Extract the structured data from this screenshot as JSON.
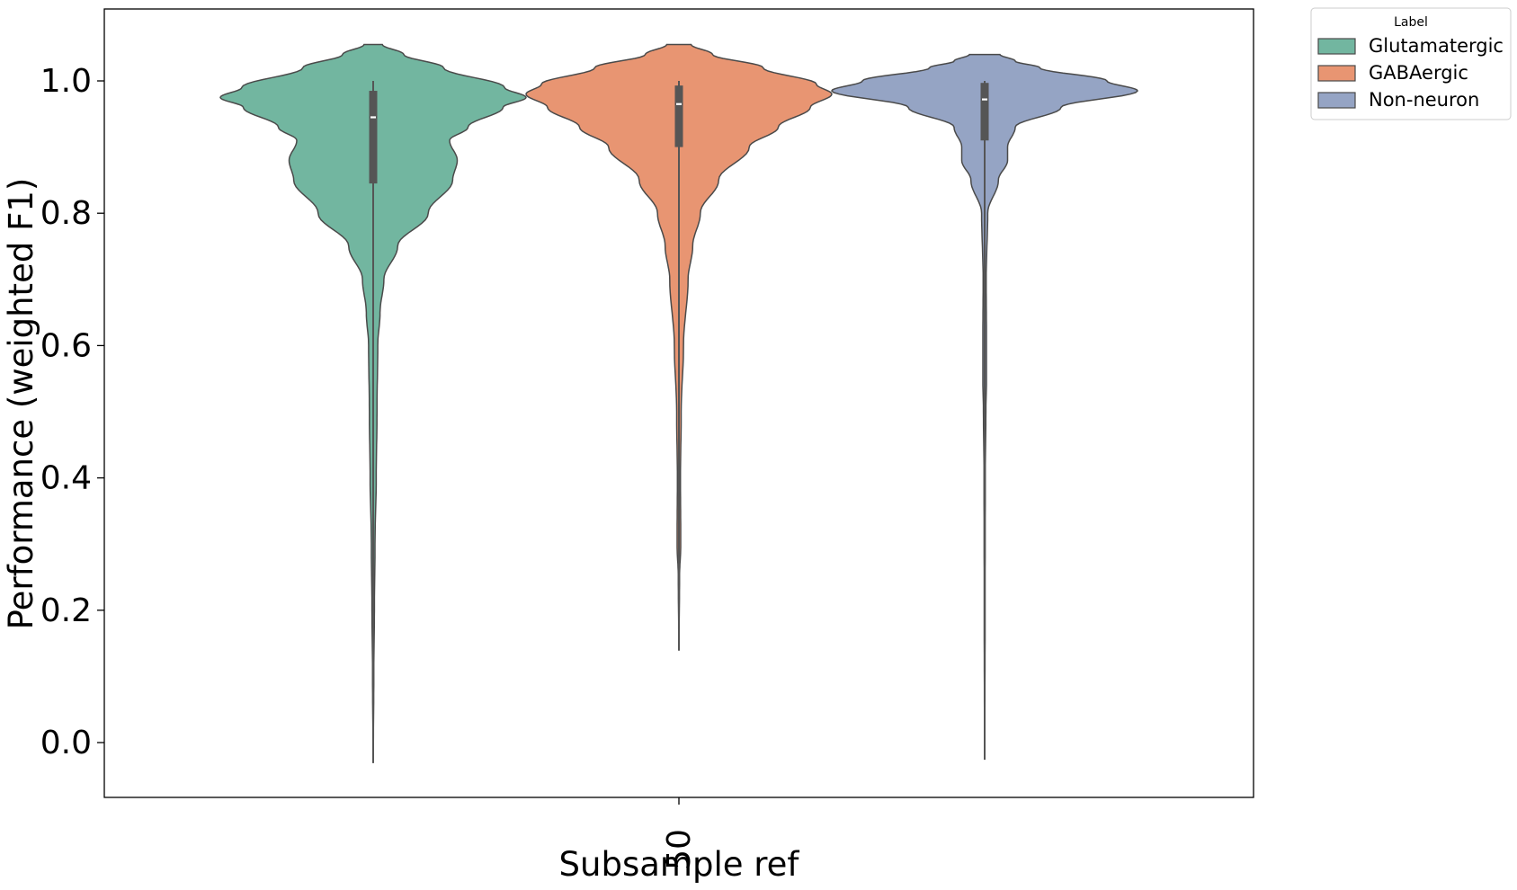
{
  "chart_data": {
    "type": "violin",
    "title": "",
    "xlabel": "Subsample ref",
    "ylabel": "Performance (weighted F1)",
    "categories": [
      "50"
    ],
    "ylim": [
      -0.08,
      1.11
    ],
    "yticks": [
      "0.0",
      "0.2",
      "0.4",
      "0.6",
      "0.8",
      "1.0"
    ],
    "grid": false,
    "legend": {
      "title": "Label",
      "placement": "outside-top-right"
    },
    "series": [
      {
        "name": "Glutamatergic",
        "color": "#72b6a0",
        "min": -0.03,
        "q1": 0.845,
        "median": 0.945,
        "q3": 0.985,
        "max": 1.0,
        "whisker_low": 0.65,
        "density": [
          [
            -0.03,
            0.001
          ],
          [
            0.1,
            0.004
          ],
          [
            0.2,
            0.008
          ],
          [
            0.3,
            0.012
          ],
          [
            0.4,
            0.02
          ],
          [
            0.5,
            0.025
          ],
          [
            0.6,
            0.03
          ],
          [
            0.65,
            0.045
          ],
          [
            0.7,
            0.07
          ],
          [
            0.75,
            0.16
          ],
          [
            0.8,
            0.36
          ],
          [
            0.85,
            0.52
          ],
          [
            0.88,
            0.55
          ],
          [
            0.91,
            0.5
          ],
          [
            0.93,
            0.62
          ],
          [
            0.96,
            0.85
          ],
          [
            0.975,
            1.0
          ],
          [
            0.99,
            0.86
          ],
          [
            1.02,
            0.46
          ],
          [
            1.04,
            0.2
          ],
          [
            1.055,
            0.06
          ]
        ]
      },
      {
        "name": "GABAergic",
        "color": "#e89572",
        "min": 0.14,
        "q1": 0.9,
        "median": 0.965,
        "q3": 0.993,
        "max": 1.0,
        "whisker_low": 0.775,
        "density": [
          [
            0.14,
            0.001
          ],
          [
            0.25,
            0.004
          ],
          [
            0.3,
            0.012
          ],
          [
            0.4,
            0.01
          ],
          [
            0.5,
            0.015
          ],
          [
            0.6,
            0.03
          ],
          [
            0.7,
            0.06
          ],
          [
            0.75,
            0.09
          ],
          [
            0.8,
            0.14
          ],
          [
            0.85,
            0.26
          ],
          [
            0.9,
            0.46
          ],
          [
            0.93,
            0.65
          ],
          [
            0.96,
            0.86
          ],
          [
            0.98,
            1.0
          ],
          [
            0.995,
            0.9
          ],
          [
            1.02,
            0.55
          ],
          [
            1.04,
            0.22
          ],
          [
            1.055,
            0.08
          ]
        ]
      },
      {
        "name": "Non-neuron",
        "color": "#95a4c4",
        "min": -0.025,
        "q1": 0.91,
        "median": 0.972,
        "q3": 0.997,
        "max": 1.0,
        "whisker_low": 0.79,
        "density": [
          [
            -0.025,
            0.001
          ],
          [
            0.2,
            0.003
          ],
          [
            0.4,
            0.004
          ],
          [
            0.5,
            0.008
          ],
          [
            0.55,
            0.012
          ],
          [
            0.6,
            0.012
          ],
          [
            0.7,
            0.01
          ],
          [
            0.8,
            0.02
          ],
          [
            0.85,
            0.09
          ],
          [
            0.88,
            0.15
          ],
          [
            0.9,
            0.15
          ],
          [
            0.93,
            0.2
          ],
          [
            0.96,
            0.5
          ],
          [
            0.985,
            1.0
          ],
          [
            1.0,
            0.8
          ],
          [
            1.02,
            0.36
          ],
          [
            1.03,
            0.2
          ],
          [
            1.04,
            0.1
          ]
        ]
      }
    ]
  }
}
